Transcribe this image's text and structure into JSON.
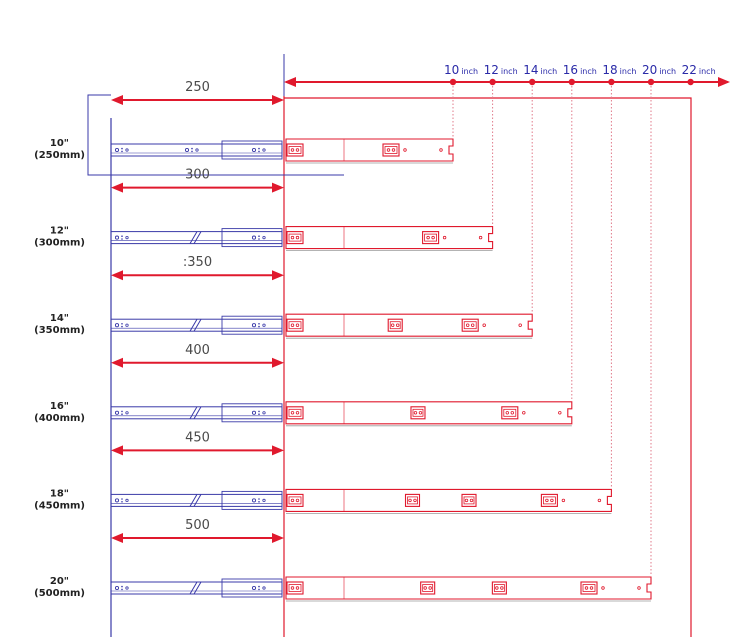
{
  "colors": {
    "red": "#e0192d",
    "blue": "#3a3aa8",
    "grey": "#9a9a9a",
    "pink_dot": "#e07a8a"
  },
  "scale": {
    "unit": "inch",
    "marks": [
      {
        "value": "10",
        "unit": "inch"
      },
      {
        "value": "12",
        "unit": "inch"
      },
      {
        "value": "14",
        "unit": "inch"
      },
      {
        "value": "16",
        "unit": "inch"
      },
      {
        "value": "18",
        "unit": "inch"
      },
      {
        "value": "20",
        "unit": "inch"
      },
      {
        "value": "22",
        "unit": "inch"
      }
    ]
  },
  "rows": [
    {
      "size_inch": "10\"",
      "size_mm": "(250mm)",
      "dimension": "250",
      "length_in": 10,
      "split": false
    },
    {
      "size_inch": "12\"",
      "size_mm": "(300mm)",
      "dimension": "300",
      "length_in": 12,
      "split": true
    },
    {
      "size_inch": "14\"",
      "size_mm": "(350mm)",
      "dimension": ":350",
      "length_in": 14,
      "split": true
    },
    {
      "size_inch": "16\"",
      "size_mm": "(400mm)",
      "dimension": "400",
      "length_in": 16,
      "split": true
    },
    {
      "size_inch": "18\"",
      "size_mm": "(450mm)",
      "dimension": "450",
      "length_in": 18,
      "split": true
    },
    {
      "size_inch": "20\"",
      "size_mm": "(500mm)",
      "dimension": "500",
      "length_in": 20,
      "split": true
    }
  ]
}
